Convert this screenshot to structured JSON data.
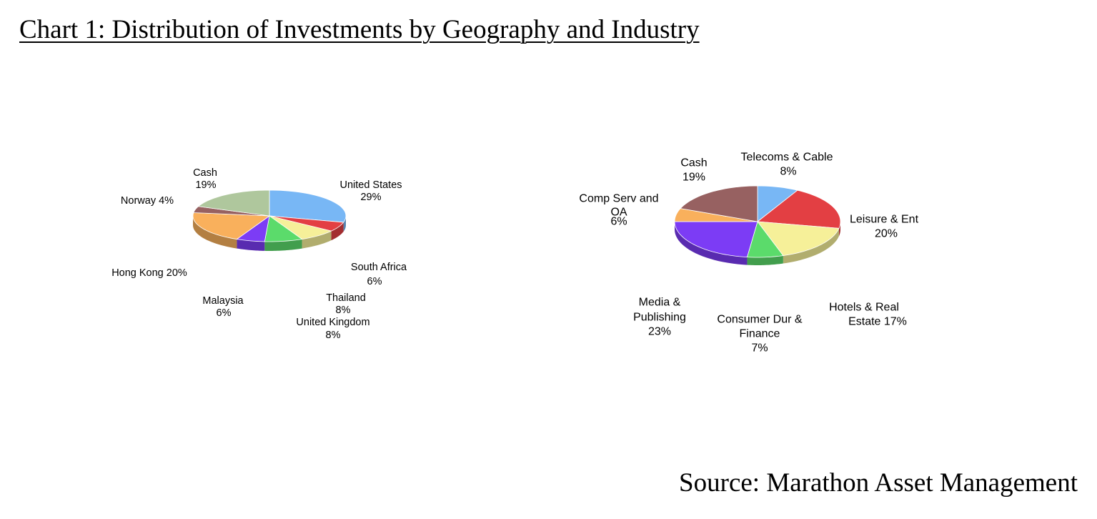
{
  "title": "Chart 1: Distribution of Investments by Geography and Industry",
  "source": "Source: Marathon Asset Management",
  "chart_data": [
    {
      "type": "pie",
      "name": "geography",
      "title": "",
      "start": "12 o'clock, clockwise",
      "slices": [
        {
          "key": "us",
          "lines": [
            "United States",
            "29%"
          ],
          "value": 29,
          "color": "#78B7F5"
        },
        {
          "key": "sa",
          "lines": [
            "South Africa",
            "6%"
          ],
          "value": 6,
          "color": "#E33F43"
        },
        {
          "key": "th",
          "lines": [
            "Thailand",
            "8%"
          ],
          "value": 8,
          "color": "#F6F099"
        },
        {
          "key": "uk",
          "lines": [
            "United Kingdom",
            "8%"
          ],
          "value": 8,
          "color": "#5BDB6B"
        },
        {
          "key": "my",
          "lines": [
            "Malaysia",
            "6%"
          ],
          "value": 6,
          "color": "#7C3CF5"
        },
        {
          "key": "hk",
          "lines": [
            "Hong Kong 20%"
          ],
          "value": 20,
          "color": "#F9B05C"
        },
        {
          "key": "no",
          "lines": [
            "Norway 4%"
          ],
          "value": 4,
          "color": "#976161"
        },
        {
          "key": "cash",
          "lines": [
            "Cash",
            "19%"
          ],
          "value": 19,
          "color": "#AFC79D"
        }
      ]
    },
    {
      "type": "pie",
      "name": "industry",
      "title": "",
      "start": "12 o'clock, clockwise",
      "slices": [
        {
          "key": "tel",
          "lines": [
            "Telecoms & Cable",
            "8%"
          ],
          "value": 8,
          "color": "#78B7F5"
        },
        {
          "key": "lei",
          "lines": [
            "Leisure & Ent",
            "20%"
          ],
          "value": 20,
          "color": "#E33F43"
        },
        {
          "key": "hot",
          "lines": [
            "Hotels & Real",
            "Estate 17%"
          ],
          "value": 17,
          "color": "#F6F099"
        },
        {
          "key": "con",
          "lines": [
            "Consumer Dur &",
            "Finance",
            "7%"
          ],
          "value": 7,
          "color": "#5BDB6B"
        },
        {
          "key": "med",
          "lines": [
            "Media &",
            "Publishing",
            "23%"
          ],
          "value": 23,
          "color": "#7C3CF5"
        },
        {
          "key": "comp",
          "lines": [
            "Comp Serv and",
            "OA",
            "6%"
          ],
          "value": 6,
          "color": "#F9B05C"
        },
        {
          "key": "cash",
          "lines": [
            "Cash",
            "19%"
          ],
          "value": 19,
          "color": "#976161"
        }
      ]
    }
  ]
}
